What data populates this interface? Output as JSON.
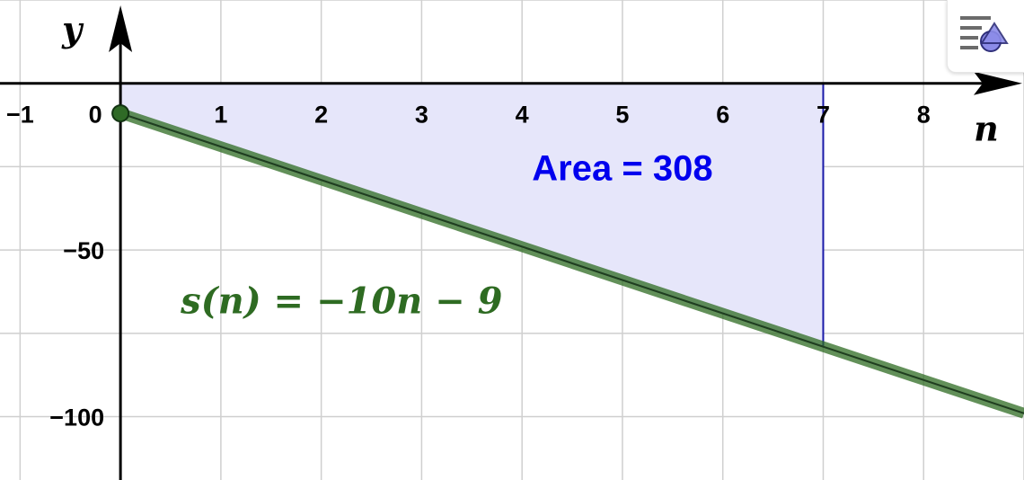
{
  "chart_data": {
    "type": "line",
    "xlabel": "n",
    "ylabel": "y",
    "xlim": [
      -1.2,
      9.0
    ],
    "ylim": [
      -119,
      25
    ],
    "x_ticks": [
      -1,
      0,
      1,
      2,
      3,
      4,
      5,
      6,
      7,
      8
    ],
    "x_tick_labels": [
      "−1",
      "0",
      "1",
      "2",
      "3",
      "4",
      "5",
      "6",
      "7",
      "8"
    ],
    "y_ticks": [
      -50,
      -100
    ],
    "y_tick_labels": [
      "−50",
      "−100"
    ],
    "grid": true,
    "series": [
      {
        "name": "s(n) = −10n − 9",
        "slope": -10,
        "intercept": -9,
        "x_start": 0,
        "color": "#2e6b22",
        "start_point": {
          "x": 0,
          "y": -9
        }
      }
    ],
    "shaded_region": {
      "x_from": 0,
      "x_to": 7,
      "y_top": 0,
      "fill": "#e6e6fa",
      "stroke": "#1a1aa8"
    },
    "annotations": {
      "area_label": "Area = 308",
      "area_label_at": {
        "x": 5,
        "y": -29
      },
      "function_label": "s(n) = −10n − 9",
      "function_label_at": {
        "x": 0.6,
        "y": -69
      }
    }
  },
  "toolbar": {
    "style_button_icon": "graphics-style-icon"
  }
}
